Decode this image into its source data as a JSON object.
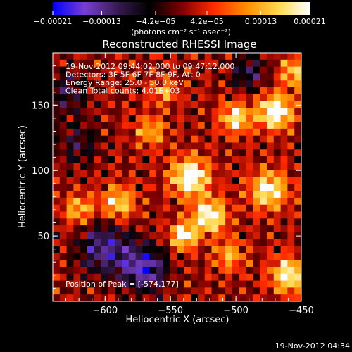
{
  "chart_data": {
    "type": "heatmap",
    "title": "Reconstructed RHESSI Image",
    "xlabel": "Heliocentric X (arcsec)",
    "ylabel": "Heliocentric Y (arcsec)",
    "xlim": [
      -640,
      -450
    ],
    "ylim": [
      0,
      190
    ],
    "x_ticks": [
      -600,
      -550,
      -500,
      -450
    ],
    "x_tick_labels": [
      "−600",
      "−550",
      "−500",
      "−450"
    ],
    "y_ticks": [
      50,
      100,
      150
    ],
    "y_tick_labels": [
      "50",
      "100",
      "150"
    ],
    "colorbar": {
      "range": [
        -0.00021,
        0.00021
      ],
      "ticks": [
        -0.00021,
        -0.00013,
        -4.2e-05,
        4.2e-05,
        0.00013,
        0.00021
      ],
      "tick_labels": [
        "−0.00021",
        "−0.00013",
        "−4.2e−05",
        "4.2e−05",
        "0.00013",
        "0.00021"
      ],
      "unit_label": "(photons cm⁻² s⁻¹ asec⁻²)",
      "colors": [
        "#0000ff",
        "#7a3fd0",
        "#3a1a55",
        "#000000",
        "#7a0000",
        "#ff2a00",
        "#ff8c00",
        "#ffd84a",
        "#ffffff"
      ]
    },
    "annotations": [
      "19-Nov-2012 09:44:02.000 to 09:47:12.000",
      "Detectors: 3F 5F 6F 7F 8F 9F, Att 0",
      "Energy Range: 25.0 - 50.0 keV",
      "Clean     Total counts: 4.01E+03"
    ],
    "peak_label": "Position of Peak = [-574,177]",
    "peak": [
      -574,
      177
    ],
    "sources": [
      {
        "x": -470,
        "y": 145,
        "amp": 1.0,
        "sigma": 9
      },
      {
        "x": -535,
        "y": 95,
        "amp": 0.95,
        "sigma": 10
      },
      {
        "x": -520,
        "y": 65,
        "amp": 0.9,
        "sigma": 9
      },
      {
        "x": -540,
        "y": 50,
        "amp": 0.85,
        "sigma": 7
      },
      {
        "x": -475,
        "y": 85,
        "amp": 0.8,
        "sigma": 10
      },
      {
        "x": -500,
        "y": 140,
        "amp": 0.75,
        "sigma": 8
      },
      {
        "x": -590,
        "y": 75,
        "amp": 0.65,
        "sigma": 9
      },
      {
        "x": -620,
        "y": 70,
        "amp": 0.55,
        "sigma": 8
      },
      {
        "x": -565,
        "y": 130,
        "amp": 0.5,
        "sigma": 8
      },
      {
        "x": -460,
        "y": 20,
        "amp": 0.85,
        "sigma": 9
      },
      {
        "x": -505,
        "y": 35,
        "amp": 0.5,
        "sigma": 8
      },
      {
        "x": -555,
        "y": 160,
        "amp": 0.45,
        "sigma": 7
      },
      {
        "x": -455,
        "y": 175,
        "amp": 0.6,
        "sigma": 8
      },
      {
        "x": -600,
        "y": 40,
        "amp": -0.6,
        "sigma": 14
      },
      {
        "x": -570,
        "y": 25,
        "amp": -0.7,
        "sigma": 12
      },
      {
        "x": -630,
        "y": 160,
        "amp": -0.35,
        "sigma": 12
      },
      {
        "x": -490,
        "y": 175,
        "amp": -0.4,
        "sigma": 10
      },
      {
        "x": -620,
        "y": 120,
        "amp": -0.3,
        "sigma": 12
      }
    ]
  },
  "footer": {
    "timestamp": "19-Nov-2012 04:34"
  }
}
